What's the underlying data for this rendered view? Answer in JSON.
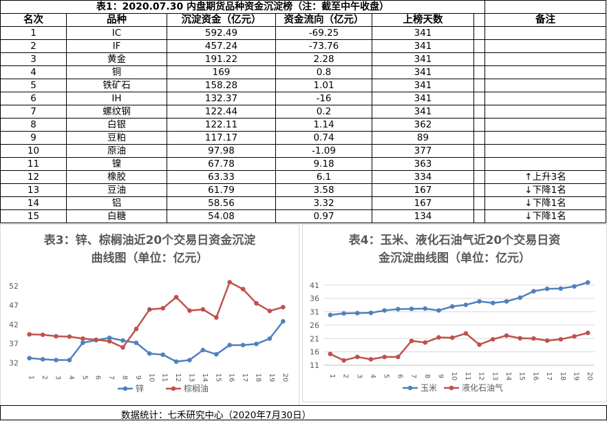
{
  "table": {
    "title": "表1：2020.07.30 内盘期货品种资金沉淀榜（注：截至中午收盘）",
    "headers": [
      "名次",
      "品种",
      "沉淀资金（亿元）",
      "资金流向（亿元）",
      "上榜天数",
      "",
      "备注"
    ],
    "rows": [
      [
        "1",
        "IC",
        "592.49",
        "-69.25",
        "341",
        "",
        ""
      ],
      [
        "2",
        "IF",
        "457.24",
        "-73.76",
        "341",
        "",
        ""
      ],
      [
        "3",
        "黄金",
        "191.22",
        "2.28",
        "341",
        "",
        ""
      ],
      [
        "4",
        "铜",
        "169",
        "0.8",
        "341",
        "",
        ""
      ],
      [
        "5",
        "铁矿石",
        "158.28",
        "1.01",
        "341",
        "",
        ""
      ],
      [
        "6",
        "IH",
        "132.37",
        "-16",
        "341",
        "",
        ""
      ],
      [
        "7",
        "螺纹钢",
        "122.44",
        "0.2",
        "341",
        "",
        ""
      ],
      [
        "8",
        "白银",
        "122.11",
        "1.14",
        "362",
        "",
        ""
      ],
      [
        "9",
        "豆粕",
        "117.17",
        "0.74",
        "89",
        "",
        ""
      ],
      [
        "10",
        "原油",
        "97.98",
        "-1.09",
        "377",
        "",
        ""
      ],
      [
        "11",
        "镍",
        "67.78",
        "9.18",
        "363",
        "",
        ""
      ],
      [
        "12",
        "橡胶",
        "63.33",
        "6.1",
        "334",
        "",
        "↑上升3名"
      ],
      [
        "13",
        "豆油",
        "61.79",
        "3.58",
        "167",
        "",
        "↓下降1名"
      ],
      [
        "14",
        "铝",
        "58.56",
        "3.32",
        "167",
        "",
        "↓下降1名"
      ],
      [
        "15",
        "白糖",
        "54.08",
        "0.97",
        "134",
        "",
        "↓下降1名"
      ]
    ]
  },
  "chart_data": [
    {
      "type": "line",
      "title": "表3：锌、棕榈油近20个交易日资金沉淀曲线图（单位：亿元）",
      "title_lines": [
        "表3：锌、棕榈油近20个交易日资金沉淀",
        "曲线图（单位：亿元）"
      ],
      "x": [
        "1",
        "2",
        "3",
        "4",
        "5",
        "6",
        "7",
        "8",
        "9",
        "10",
        "11",
        "12",
        "13",
        "14",
        "15",
        "16",
        "17",
        "18",
        "19",
        "20"
      ],
      "yticks": [
        32,
        37,
        42,
        47,
        52
      ],
      "ylim": [
        31,
        54
      ],
      "series": [
        {
          "name": "锌",
          "color": "#4f81bd",
          "values": [
            33.2,
            32.9,
            32.7,
            32.7,
            37.2,
            37.9,
            38.5,
            37.8,
            37.2,
            34.4,
            34.1,
            32.3,
            32.7,
            35.3,
            34.2,
            36.6,
            36.6,
            36.9,
            38.3,
            42.8
          ]
        },
        {
          "name": "棕榈油",
          "color": "#c0504d",
          "values": [
            39.4,
            39.3,
            38.9,
            38.8,
            38.3,
            38.0,
            37.6,
            36.0,
            40.8,
            45.9,
            46.2,
            49.1,
            45.6,
            45.9,
            43.8,
            53.0,
            51.2,
            47.5,
            45.5,
            46.5
          ]
        }
      ]
    },
    {
      "type": "line",
      "title": "表4：玉米、液化石油气近20个交易日资金沉淀曲线图（单位：亿元）",
      "title_lines": [
        "表4：玉米、液化石油气近20个交易日资",
        "金沉淀曲线图（单位：亿元）"
      ],
      "x": [
        "1",
        "2",
        "3",
        "4",
        "5",
        "6",
        "7",
        "8",
        "9",
        "10",
        "11",
        "12",
        "13",
        "14",
        "15",
        "16",
        "17",
        "18",
        "19",
        "20"
      ],
      "yticks": [
        11,
        16,
        21,
        26,
        31,
        36,
        41
      ],
      "ylim": [
        11,
        43
      ],
      "series": [
        {
          "name": "玉米",
          "color": "#4f81bd",
          "values": [
            29.8,
            30.4,
            30.5,
            30.6,
            31.5,
            32.0,
            32.1,
            32.2,
            31.5,
            33.0,
            33.6,
            34.9,
            34.3,
            34.9,
            36.3,
            38.7,
            39.6,
            39.7,
            40.5,
            42.0
          ]
        },
        {
          "name": "液化石油气",
          "color": "#c0504d",
          "values": [
            15.2,
            12.8,
            14.1,
            13.2,
            14.1,
            14.1,
            20.1,
            19.5,
            21.4,
            21.3,
            22.9,
            18.7,
            20.7,
            22.1,
            21.1,
            21.0,
            20.2,
            20.7,
            21.8,
            23.1
          ]
        }
      ]
    }
  ],
  "footer": {
    "text": "数据统计：七禾研究中心（2020年7月30日）"
  }
}
